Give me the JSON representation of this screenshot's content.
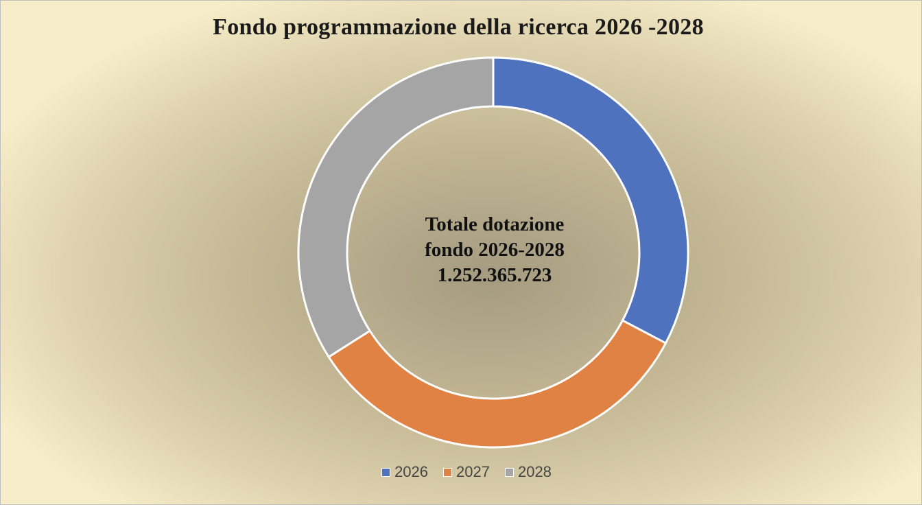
{
  "chart_data": {
    "type": "pie",
    "variant": "doughnut",
    "title": "Fondo programmazione della ricerca 2026 -2028",
    "center_text": [
      "Totale dotazione",
      "fondo 2026-2028",
      "1.252.365.723"
    ],
    "categories": [
      "2026",
      "2027",
      "2028"
    ],
    "values": [
      0.327,
      0.333,
      0.34
    ],
    "value_unit": "share of total",
    "colors": [
      "#4f72be",
      "#df8244",
      "#a5a5a5"
    ],
    "legend_position": "bottom",
    "start_angle": "top, clockwise"
  }
}
